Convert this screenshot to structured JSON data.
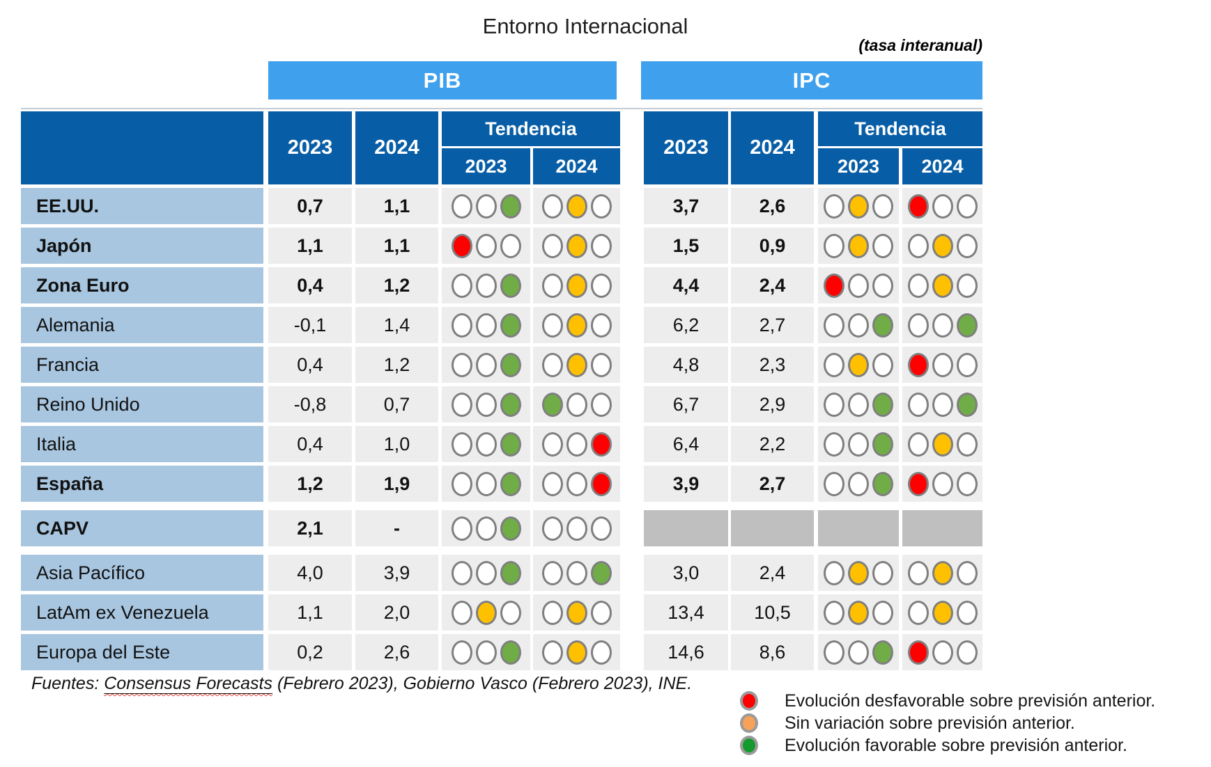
{
  "title": "Entorno Internacional",
  "subtitle_note": "(tasa interanual)",
  "column_groups": {
    "pib": "PIB",
    "ipc": "IPC"
  },
  "tendencia_label": "Tendencia",
  "year_cols": [
    "2023",
    "2024"
  ],
  "chart_data": {
    "type": "table",
    "title": "Entorno Internacional",
    "subtitle": "(tasa interanual)",
    "column_groups": [
      "PIB",
      "IPC"
    ],
    "columns_per_group": [
      "2023",
      "2024",
      "Tendencia 2023",
      "Tendencia 2024"
    ],
    "trend_encoding": "three slots per tendencia cell; filled slot color gives assessment",
    "legend_position": "bottom-right",
    "rows": [
      {
        "label": "EE.UU.",
        "bold": true,
        "spacer_before": false,
        "pib": {
          "y2023": "0,7",
          "y2024": "1,1",
          "t2023": [
            "empty",
            "empty",
            "green"
          ],
          "t2024": [
            "empty",
            "orange",
            "empty"
          ]
        },
        "ipc": {
          "y2023": "3,7",
          "y2024": "2,6",
          "t2023": [
            "empty",
            "orange",
            "empty"
          ],
          "t2024": [
            "red",
            "empty",
            "empty"
          ]
        }
      },
      {
        "label": "Japón",
        "bold": true,
        "spacer_before": false,
        "pib": {
          "y2023": "1,1",
          "y2024": "1,1",
          "t2023": [
            "red",
            "empty",
            "empty"
          ],
          "t2024": [
            "empty",
            "orange",
            "empty"
          ]
        },
        "ipc": {
          "y2023": "1,5",
          "y2024": "0,9",
          "t2023": [
            "empty",
            "orange",
            "empty"
          ],
          "t2024": [
            "empty",
            "orange",
            "empty"
          ]
        }
      },
      {
        "label": "Zona Euro",
        "bold": true,
        "spacer_before": false,
        "pib": {
          "y2023": "0,4",
          "y2024": "1,2",
          "t2023": [
            "empty",
            "empty",
            "green"
          ],
          "t2024": [
            "empty",
            "orange",
            "empty"
          ]
        },
        "ipc": {
          "y2023": "4,4",
          "y2024": "2,4",
          "t2023": [
            "red",
            "empty",
            "empty"
          ],
          "t2024": [
            "empty",
            "orange",
            "empty"
          ]
        }
      },
      {
        "label": "Alemania",
        "bold": false,
        "spacer_before": false,
        "pib": {
          "y2023": "-0,1",
          "y2024": "1,4",
          "t2023": [
            "empty",
            "empty",
            "green"
          ],
          "t2024": [
            "empty",
            "orange",
            "empty"
          ]
        },
        "ipc": {
          "y2023": "6,2",
          "y2024": "2,7",
          "t2023": [
            "empty",
            "empty",
            "green"
          ],
          "t2024": [
            "empty",
            "empty",
            "green"
          ]
        }
      },
      {
        "label": "Francia",
        "bold": false,
        "spacer_before": false,
        "pib": {
          "y2023": "0,4",
          "y2024": "1,2",
          "t2023": [
            "empty",
            "empty",
            "green"
          ],
          "t2024": [
            "empty",
            "orange",
            "empty"
          ]
        },
        "ipc": {
          "y2023": "4,8",
          "y2024": "2,3",
          "t2023": [
            "empty",
            "orange",
            "empty"
          ],
          "t2024": [
            "red",
            "empty",
            "empty"
          ]
        }
      },
      {
        "label": "Reino Unido",
        "bold": false,
        "spacer_before": false,
        "pib": {
          "y2023": "-0,8",
          "y2024": "0,7",
          "t2023": [
            "empty",
            "empty",
            "green"
          ],
          "t2024": [
            "green",
            "empty",
            "empty"
          ]
        },
        "ipc": {
          "y2023": "6,7",
          "y2024": "2,9",
          "t2023": [
            "empty",
            "empty",
            "green"
          ],
          "t2024": [
            "empty",
            "empty",
            "green"
          ]
        }
      },
      {
        "label": "Italia",
        "bold": false,
        "spacer_before": false,
        "pib": {
          "y2023": "0,4",
          "y2024": "1,0",
          "t2023": [
            "empty",
            "empty",
            "green"
          ],
          "t2024": [
            "empty",
            "empty",
            "red"
          ]
        },
        "ipc": {
          "y2023": "6,4",
          "y2024": "2,2",
          "t2023": [
            "empty",
            "empty",
            "green"
          ],
          "t2024": [
            "empty",
            "orange",
            "empty"
          ]
        }
      },
      {
        "label": "España",
        "bold": true,
        "spacer_before": false,
        "pib": {
          "y2023": "1,2",
          "y2024": "1,9",
          "t2023": [
            "empty",
            "empty",
            "green"
          ],
          "t2024": [
            "empty",
            "empty",
            "red"
          ]
        },
        "ipc": {
          "y2023": "3,9",
          "y2024": "2,7",
          "t2023": [
            "empty",
            "empty",
            "green"
          ],
          "t2024": [
            "red",
            "empty",
            "empty"
          ]
        }
      },
      {
        "label": "CAPV",
        "bold": true,
        "spacer_before": true,
        "pib": {
          "y2023": "2,1",
          "y2024": "-",
          "t2023": [
            "empty",
            "empty",
            "green"
          ],
          "t2024": [
            "empty",
            "empty",
            "empty"
          ]
        },
        "ipc": null
      },
      {
        "label": "Asia Pacífico",
        "bold": false,
        "spacer_before": true,
        "pib": {
          "y2023": "4,0",
          "y2024": "3,9",
          "t2023": [
            "empty",
            "empty",
            "green"
          ],
          "t2024": [
            "empty",
            "empty",
            "green"
          ]
        },
        "ipc": {
          "y2023": "3,0",
          "y2024": "2,4",
          "t2023": [
            "empty",
            "orange",
            "empty"
          ],
          "t2024": [
            "empty",
            "orange",
            "empty"
          ]
        }
      },
      {
        "label": "LatAm ex Venezuela",
        "bold": false,
        "spacer_before": false,
        "pib": {
          "y2023": "1,1",
          "y2024": "2,0",
          "t2023": [
            "empty",
            "orange",
            "empty"
          ],
          "t2024": [
            "empty",
            "orange",
            "empty"
          ]
        },
        "ipc": {
          "y2023": "13,4",
          "y2024": "10,5",
          "t2023": [
            "empty",
            "orange",
            "empty"
          ],
          "t2024": [
            "empty",
            "orange",
            "empty"
          ]
        }
      },
      {
        "label": "Europa del Este",
        "bold": false,
        "spacer_before": false,
        "pib": {
          "y2023": "0,2",
          "y2024": "2,6",
          "t2023": [
            "empty",
            "empty",
            "green"
          ],
          "t2024": [
            "empty",
            "orange",
            "empty"
          ]
        },
        "ipc": {
          "y2023": "14,6",
          "y2024": "8,6",
          "t2023": [
            "empty",
            "empty",
            "green"
          ],
          "t2024": [
            "red",
            "empty",
            "empty"
          ]
        }
      }
    ]
  },
  "footer": {
    "prefix": "Fuentes: ",
    "link_text": "Consensus Forecasts",
    "suffix": " (Febrero 2023), Gobierno Vasco (Febrero 2023), INE."
  },
  "legend": [
    {
      "state": "red",
      "label": "Evolución desfavorable sobre previsión anterior."
    },
    {
      "state": "orange",
      "label": "Sin variación sobre previsión anterior."
    },
    {
      "state": "green",
      "label": "Evolución favorable sobre previsión anterior."
    }
  ],
  "colors": {
    "header_dark_blue": "#085EA6",
    "group_bar_blue": "#3FA0ED",
    "row_label_blue": "#A8C6E0",
    "cell_gray": "#EDEDED",
    "no_data_gray": "#BFBFBF",
    "dot_green": "#70AD47",
    "dot_orange": "#FFC000",
    "dot_red": "#FF0000",
    "dot_ring": "#7F7F7F",
    "legend_red": "#FE0000",
    "legend_orange": "#F7A159",
    "legend_green": "#149A2D",
    "legend_ring": "#9A9A9A",
    "wavy_red": "#E03C31"
  }
}
